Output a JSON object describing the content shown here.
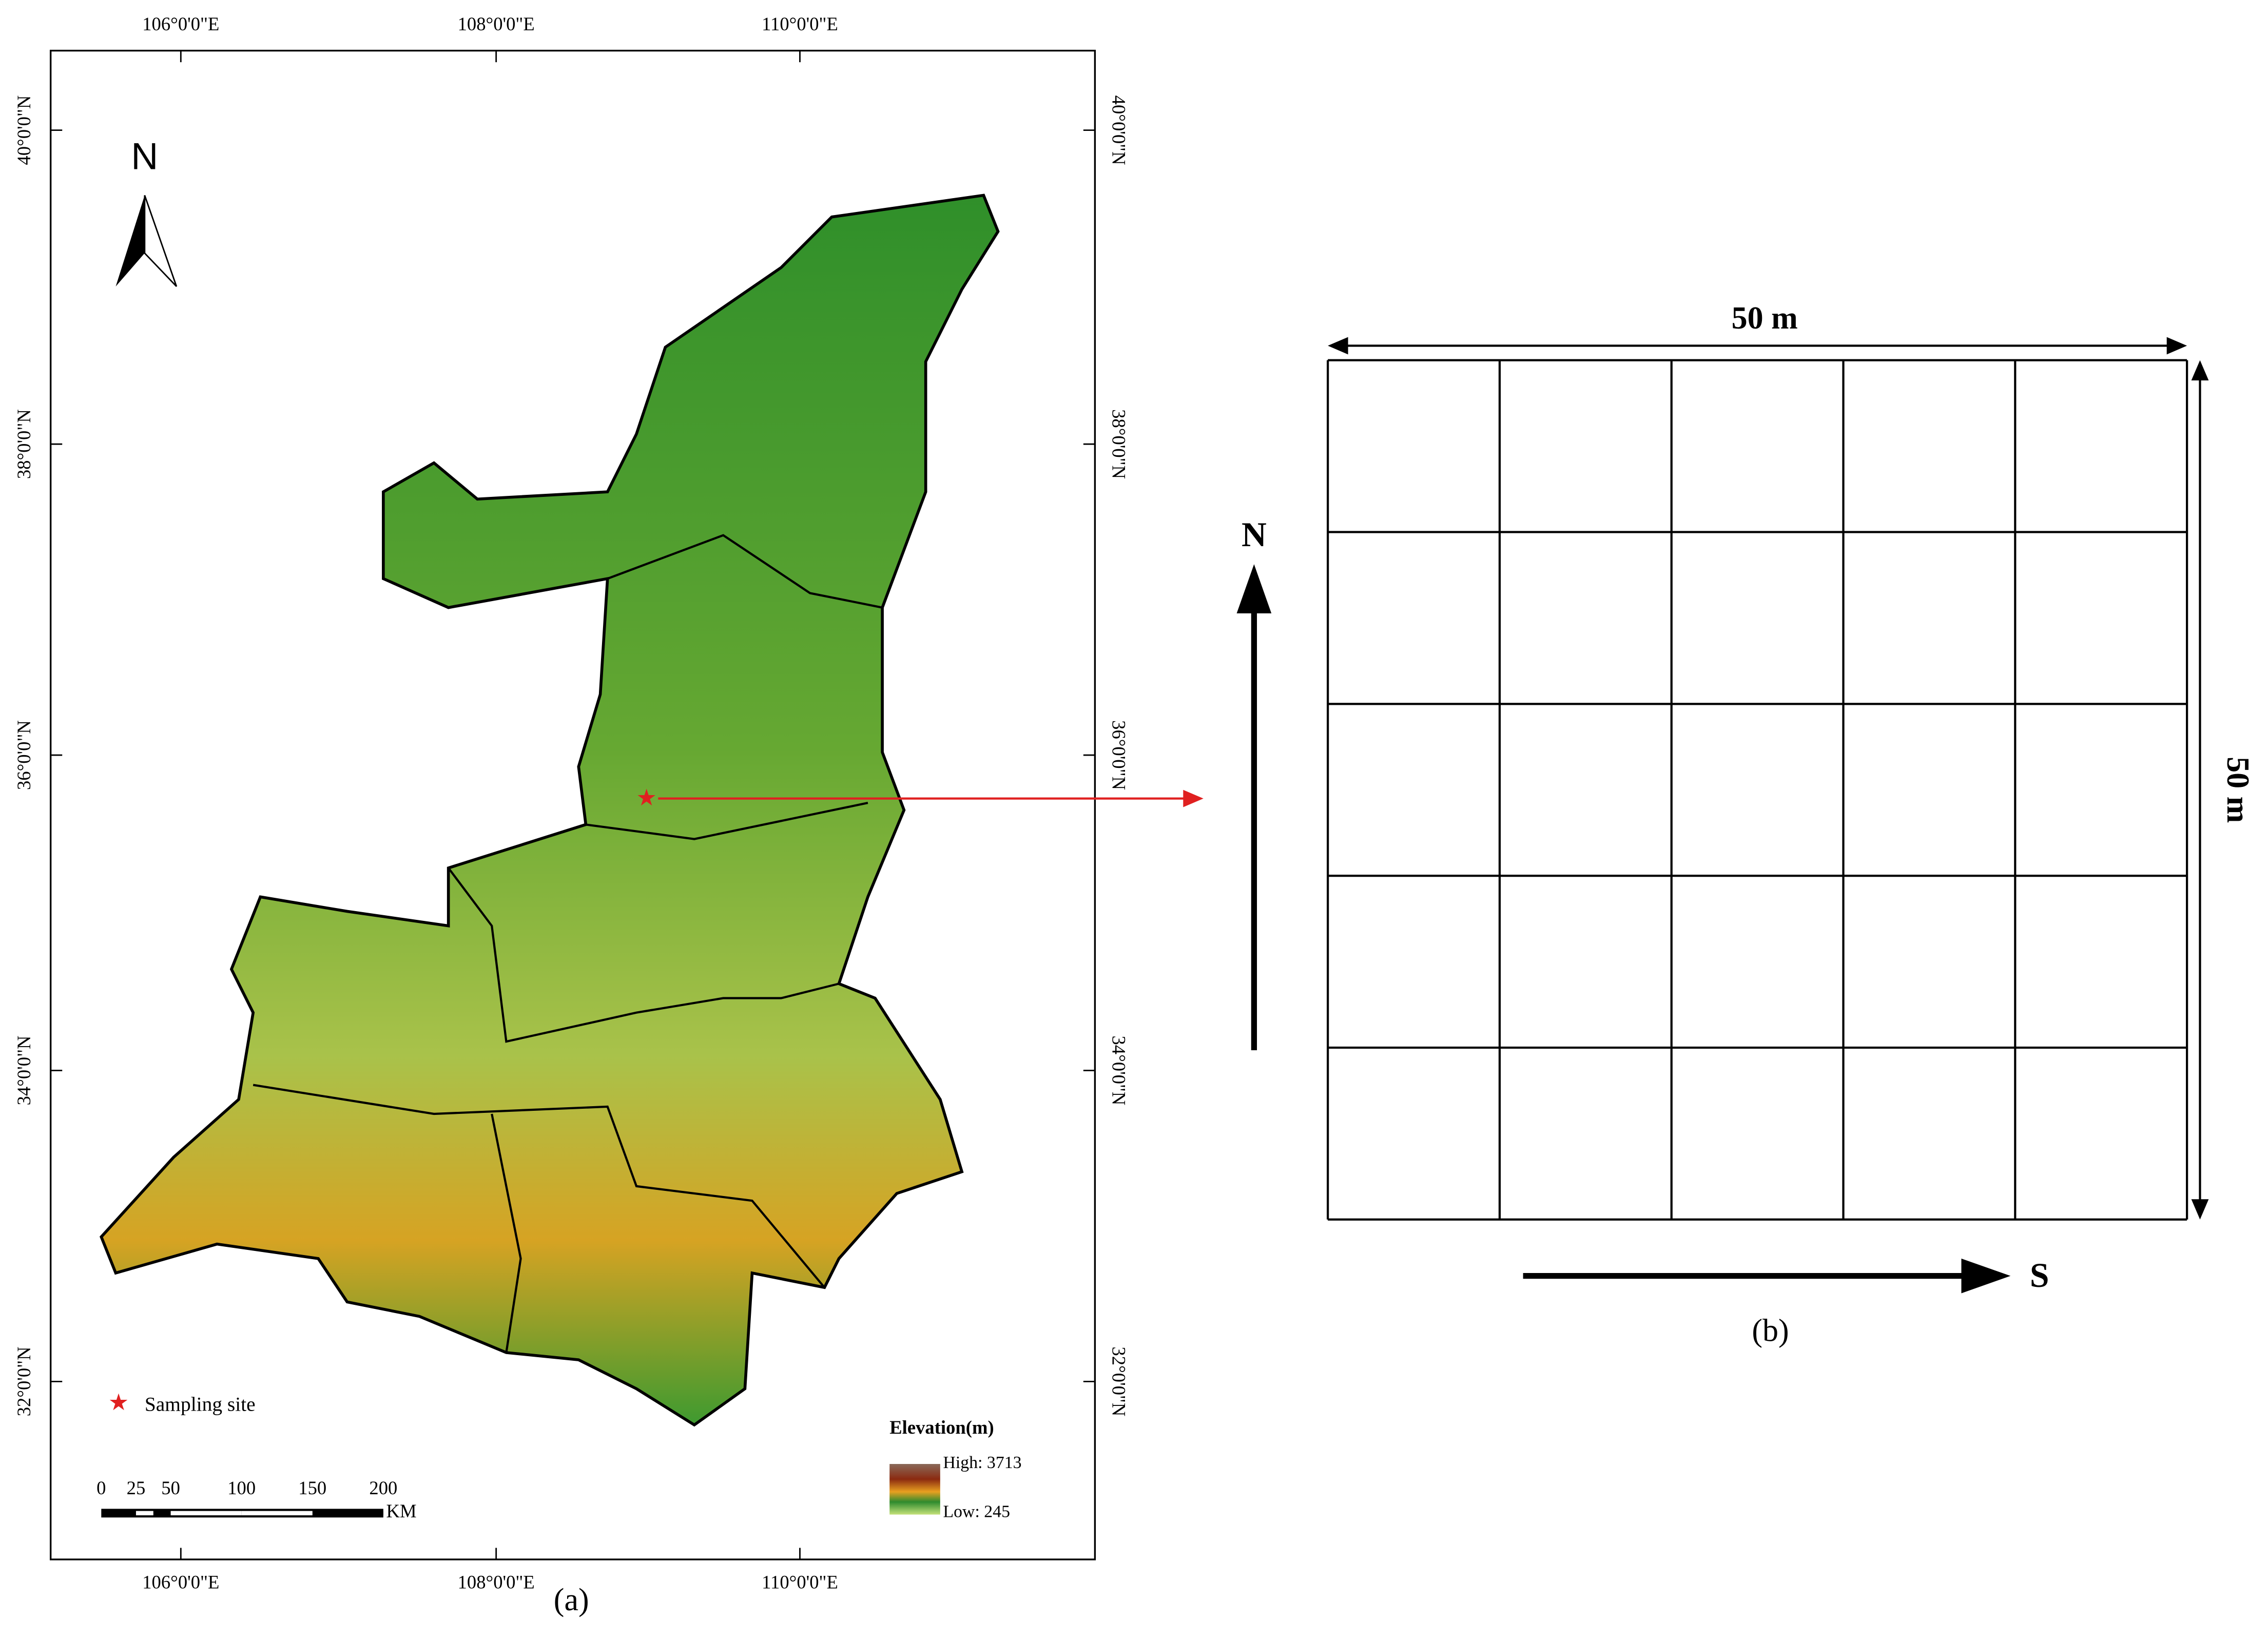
{
  "panel_a": {
    "caption": "(a)",
    "longitudes": [
      "106°0'0\"E",
      "108°0'0\"E",
      "110°0'0\"E"
    ],
    "latitudes": [
      "40°0'0\"N",
      "38°0'0\"N",
      "36°0'0\"N",
      "34°0'0\"N",
      "32°0'0\"N"
    ],
    "north": "N",
    "sampling_site": "Sampling site",
    "elevation": {
      "title": "Elevation(m)",
      "high": "High: 3713",
      "low": "Low: 245"
    },
    "scale": {
      "labels": [
        "0",
        "25",
        "50",
        "100",
        "150",
        "200"
      ],
      "unit": "KM"
    }
  },
  "panel_b": {
    "caption": "(b)",
    "width_label": "50 m",
    "height_label": "50 m",
    "north": "N",
    "south": "S"
  }
}
